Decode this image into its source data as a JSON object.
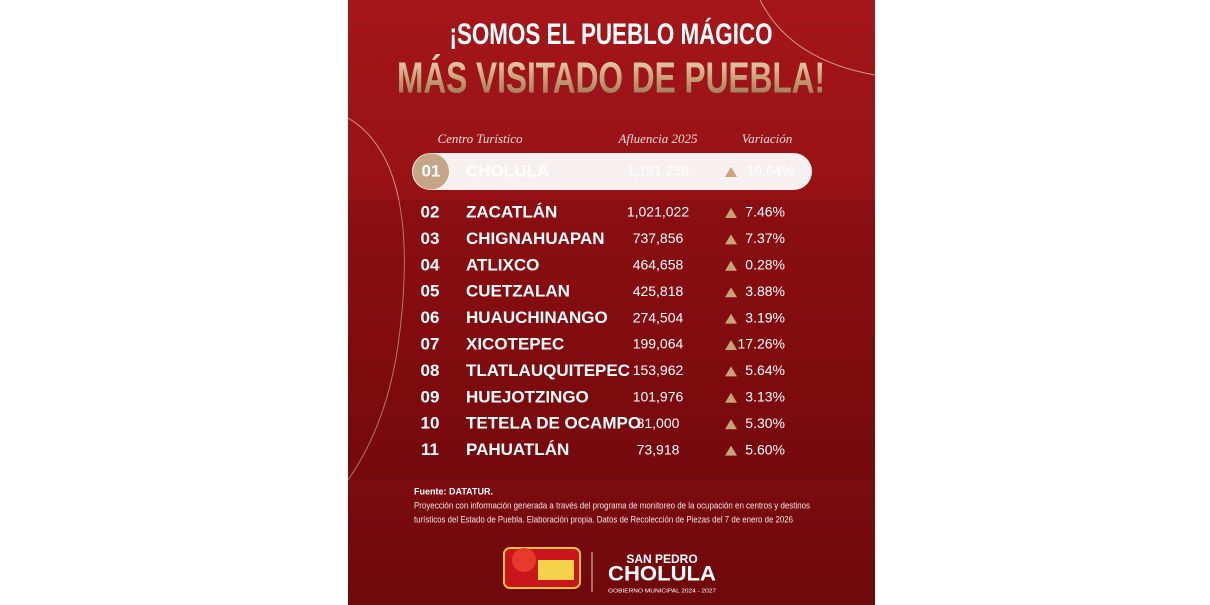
{
  "header": {
    "title_line1": "¡SOMOS EL PUEBLO MÁGICO",
    "title_line2": "MÁS VISITADO DE PUEBLA!"
  },
  "table": {
    "columns": [
      "Centro Turístico",
      "Afluencia 2025",
      "Variación"
    ],
    "rows": [
      {
        "rank": "01",
        "name": "CHOLULA",
        "value": "1,191,258",
        "variation": "10.64%"
      },
      {
        "rank": "02",
        "name": "ZACATLÁN",
        "value": "1,021,022",
        "variation": "7.46%"
      },
      {
        "rank": "03",
        "name": "CHIGNAHUAPAN",
        "value": "737,856",
        "variation": "7.37%"
      },
      {
        "rank": "04",
        "name": "ATLIXCO",
        "value": "464,658",
        "variation": "0.28%"
      },
      {
        "rank": "05",
        "name": "CUETZALAN",
        "value": "425,818",
        "variation": "3.88%"
      },
      {
        "rank": "06",
        "name": "HUAUCHINANGO",
        "value": "274,504",
        "variation": "3.19%"
      },
      {
        "rank": "07",
        "name": "XICOTEPEC",
        "value": "199,064",
        "variation": "17.26%"
      },
      {
        "rank": "08",
        "name": "TLATLAUQUITEPEC",
        "value": "153,962",
        "variation": "5.64%"
      },
      {
        "rank": "09",
        "name": "HUEJOTZINGO",
        "value": "101,976",
        "variation": "3.13%"
      },
      {
        "rank": "10",
        "name": "TETELA DE OCAMPO",
        "value": "81,000",
        "variation": "5.30%"
      },
      {
        "rank": "11",
        "name": "PAHUATLÁN",
        "value": "73,918",
        "variation": "5.60%"
      }
    ]
  },
  "footer": {
    "source": "Fuente: DATATUR.",
    "note_line1": "Proyección con información generada a través del programa de monitoreo de la ocupación en centros y destinos",
    "note_line2": "turísticos del Estado de Puebla. Elaboración propia. Datos de Recolección de Piezas del 7 de enero de 2026"
  },
  "logo": {
    "line1": "SAN PEDRO",
    "line2": "CHOLULA",
    "line3": "GOBIERNO MUNICIPAL 2024 - 2027"
  }
}
